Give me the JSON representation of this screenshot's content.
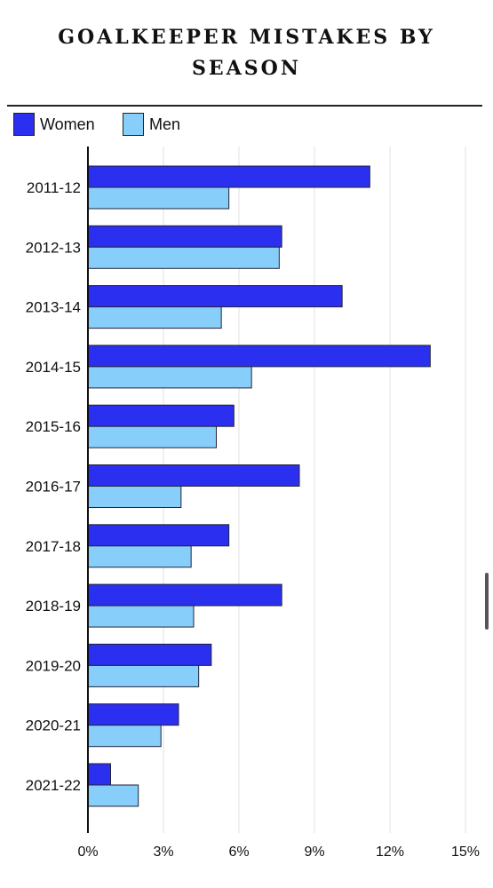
{
  "title_lines": [
    "GOALKEEPER MISTAKES BY",
    "SEASON"
  ],
  "legend": [
    {
      "label": "Women",
      "color": "#2b2fef"
    },
    {
      "label": "Men",
      "color": "#87cefa"
    }
  ],
  "chart_data": {
    "type": "bar",
    "orientation": "horizontal",
    "title": "GOALKEEPER MISTAKES BY SEASON",
    "categories": [
      "2011-12",
      "2012-13",
      "2013-14",
      "2014-15",
      "2015-16",
      "2016-17",
      "2017-18",
      "2018-19",
      "2019-20",
      "2020-21",
      "2021-22"
    ],
    "series": [
      {
        "name": "Women",
        "color": "#2b2fef",
        "values": [
          11.2,
          7.7,
          10.1,
          13.6,
          5.8,
          8.4,
          5.6,
          7.7,
          4.9,
          3.6,
          0.9
        ]
      },
      {
        "name": "Men",
        "color": "#87cefa",
        "values": [
          5.6,
          7.6,
          5.3,
          6.5,
          5.1,
          3.7,
          4.1,
          4.2,
          4.4,
          2.9,
          2.0
        ]
      }
    ],
    "xlim": [
      0,
      15
    ],
    "xticks": [
      "0%",
      "3%",
      "6%",
      "9%",
      "12%",
      "15%"
    ],
    "xtick_values": [
      0,
      3,
      6,
      9,
      12,
      15
    ],
    "grid": true,
    "legend_position": "top-left"
  }
}
